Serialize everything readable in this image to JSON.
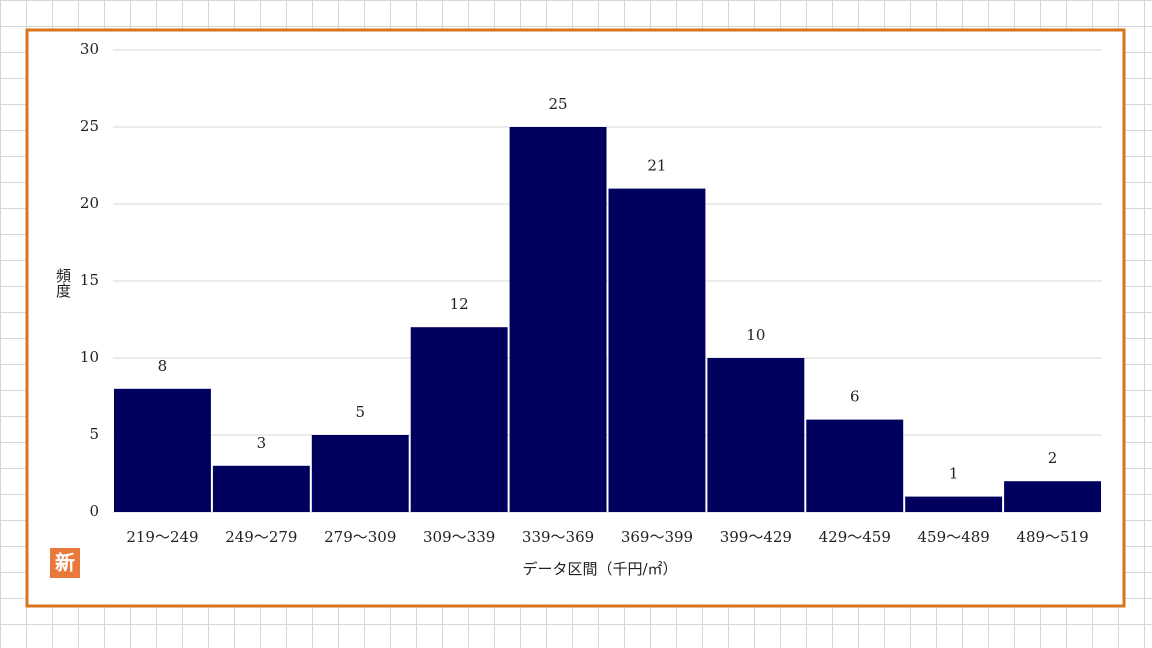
{
  "chart_data": {
    "type": "bar",
    "categories": [
      "219～249",
      "249～279",
      "279～309",
      "309～339",
      "339～369",
      "369～399",
      "399～429",
      "429～459",
      "459～489",
      "489～519"
    ],
    "values": [
      8,
      3,
      5,
      12,
      25,
      21,
      10,
      6,
      1,
      2
    ],
    "color": "#00005f",
    "ylim": [
      0,
      30
    ],
    "yticks": [
      0,
      5,
      10,
      15,
      20,
      25,
      30
    ],
    "grid": true,
    "y_label": "頻度",
    "x_label": "データ区間（千円/㎡）",
    "badge": "新"
  }
}
